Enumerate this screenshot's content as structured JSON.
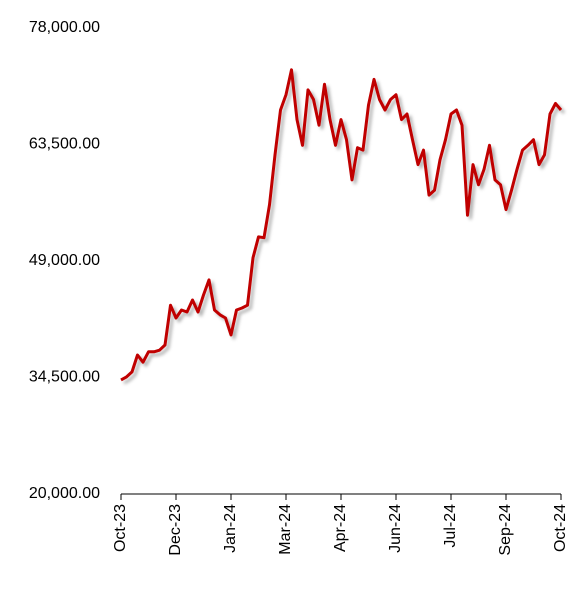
{
  "chart_data": {
    "type": "line",
    "categories": [
      "Oct-23",
      null,
      null,
      null,
      null,
      null,
      null,
      null,
      null,
      null,
      "Dec-23",
      null,
      null,
      null,
      null,
      null,
      null,
      null,
      null,
      null,
      "Jan-24",
      null,
      null,
      null,
      null,
      null,
      null,
      null,
      null,
      null,
      "Mar-24",
      null,
      null,
      null,
      null,
      null,
      null,
      null,
      null,
      null,
      "Apr-24",
      null,
      null,
      null,
      null,
      null,
      null,
      null,
      null,
      null,
      "Jun-24",
      null,
      null,
      null,
      null,
      null,
      null,
      null,
      null,
      null,
      "Jul-24",
      null,
      null,
      null,
      null,
      null,
      null,
      null,
      null,
      null,
      "Sep-24",
      null,
      null,
      null,
      null,
      null,
      null,
      null,
      null,
      null,
      "Oct-24"
    ],
    "values": [
      34200,
      34570,
      35200,
      37300,
      36400,
      37700,
      37700,
      37900,
      38550,
      43500,
      41900,
      42900,
      42650,
      44150,
      42650,
      44770,
      46650,
      42900,
      42300,
      41900,
      39800,
      42900,
      43150,
      43500,
      49400,
      52000,
      51900,
      56000,
      62200,
      67800,
      69700,
      72800,
      66600,
      63400,
      70300,
      69100,
      65900,
      71000,
      66600,
      63400,
      66600,
      64100,
      59100,
      63100,
      62800,
      68400,
      71600,
      69100,
      67800,
      69100,
      69700,
      66600,
      67300,
      64100,
      61000,
      62800,
      57200,
      57800,
      61600,
      64100,
      67300,
      67800,
      65900,
      54700,
      61000,
      58500,
      60400,
      63400,
      59100,
      58500,
      55400,
      57800,
      60400,
      62800,
      63400,
      64100,
      61000,
      62200,
      67300,
      68600,
      67800
    ],
    "color": "#c00000",
    "ylim": [
      20000,
      78000
    ],
    "yticks": [
      {
        "value": 20000,
        "label": "20,000.00"
      },
      {
        "value": 34500,
        "label": "34,500.00"
      },
      {
        "value": 49000,
        "label": "49,000.00"
      },
      {
        "value": 63500,
        "label": "63,500.00"
      },
      {
        "value": 78000,
        "label": "78,000.00"
      }
    ],
    "grid": false
  }
}
